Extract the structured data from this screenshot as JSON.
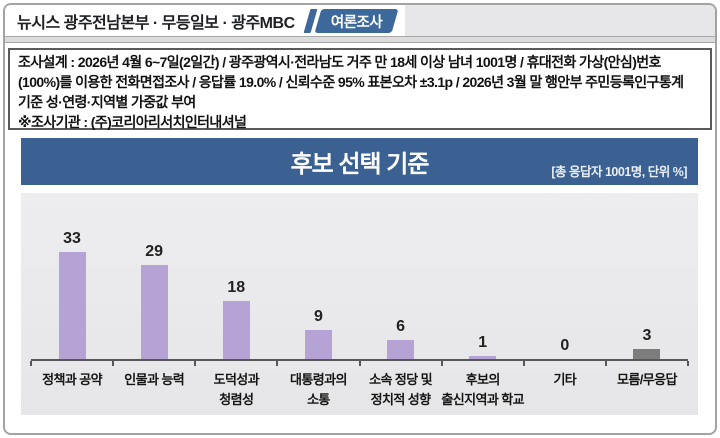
{
  "header": {
    "title": "뉴시스 광주전남본부 · 무등일보 · 광주MBC",
    "badge": "여론조사"
  },
  "survey_info": {
    "design": "조사설계 : 2026년 4월 6~7일(2일간) / 광주광역시·전라남도 거주 만 18세 이상 남녀 1001명 / 휴대전화 가상(안심)번호(100%)를 이용한 전화면접조사 / 응답률 19.0% / 신뢰수준 95% 표본오차 ±3.1p / 2026년 3월 말 행안부 주민등록인구통계 기준 성·연령·지역별 가중값 부여",
    "agency": "※조사기관 : (주)코리아리서치인터내셔널"
  },
  "chart": {
    "title": "후보 선택 기준",
    "note": "[총 응답자 1001명, 단위 %]"
  },
  "chart_data": {
    "type": "bar",
    "title": "후보 선택 기준",
    "subtitle": "[총 응답자 1001명, 단위 %]",
    "categories": [
      "정책과 공약",
      "인물과 능력",
      "도덕성과\n청렴성",
      "대통령과의\n소통",
      "소속 정당 및\n정치적 성향",
      "후보의\n출신지역과 학교",
      "기타",
      "모름/무응답"
    ],
    "values": [
      33,
      29,
      18,
      9,
      6,
      1,
      0,
      3
    ],
    "unit": "%",
    "total_respondents": 1001,
    "bar_colors": [
      "#b6a3d6",
      "#b6a3d6",
      "#b6a3d6",
      "#b6a3d6",
      "#b6a3d6",
      "#b6a3d6",
      "#b6a3d6",
      "#7d7d7d"
    ],
    "xlabel": "",
    "ylabel": "",
    "ylim": [
      0,
      38
    ],
    "grid": false,
    "legend": false
  },
  "colors": {
    "title_bar_blue": "#3a6191",
    "badge_blue": "#3c689b",
    "bar_purple": "#b6a3d6",
    "bar_gray": "#7d7d7d",
    "plot_background": "#e9e9eb"
  }
}
